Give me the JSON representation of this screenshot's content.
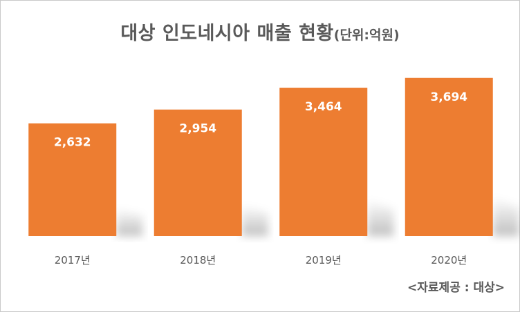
{
  "title": "대상 인도네시아 매출 현황",
  "title_unit": "(단위:억원)",
  "source": "<자료제공 : 대상>",
  "colors": {
    "bar": "#ED7D31",
    "label": "#FFFFFF",
    "tick": "#595959"
  },
  "chart_data": {
    "type": "bar",
    "title": "대상 인도네시아 매출 현황",
    "subtitle": "(단위:억원)",
    "categories": [
      "2017년",
      "2018년",
      "2019년",
      "2020년"
    ],
    "values": [
      2632,
      2954,
      3464,
      3694
    ],
    "value_labels": [
      "2,632",
      "2,954",
      "3,464",
      "3,694"
    ],
    "xlabel": "",
    "ylabel": "",
    "ylim": [
      0,
      3900
    ],
    "grid": false,
    "legend": "none"
  }
}
